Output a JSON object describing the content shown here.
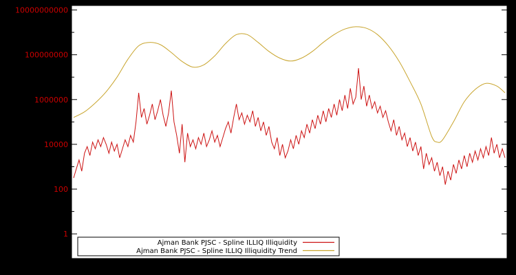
{
  "colors": {
    "background": "#000000",
    "plot_background": "#ffffff",
    "border": "#000000",
    "axis_label": "#cc0000",
    "legend_background": "#ffffff",
    "legend_text": "#000000",
    "series_illiquidity": "#cc1111",
    "series_trend": "#c8a42c"
  },
  "chart_data": {
    "type": "line",
    "yscale": "log",
    "grid": false,
    "legend_position": "bottom-center",
    "ytick_labels": [
      "1",
      "100",
      "10000",
      "1000000",
      "100000000",
      "10000000000"
    ],
    "ytick_log10": [
      0,
      2,
      4,
      6,
      8,
      10
    ],
    "ylog_axis_range": [
      -1.1,
      10.2
    ],
    "ylim": [
      1,
      10000000000
    ],
    "x_domain": [
      0,
      159
    ],
    "series": [
      {
        "name": "Ajman Bank PJSC - Spline ILLIQ Illiquidity",
        "color": "#cc1111",
        "style": "jagged",
        "log10_values": [
          2.5,
          2.9,
          3.3,
          2.8,
          3.6,
          3.9,
          3.5,
          4.1,
          3.8,
          4.2,
          3.9,
          4.3,
          4.0,
          3.6,
          4.1,
          3.7,
          4.0,
          3.4,
          3.8,
          4.2,
          3.9,
          4.4,
          4.1,
          5.0,
          6.3,
          5.2,
          5.6,
          4.9,
          5.3,
          5.8,
          5.1,
          5.5,
          6.0,
          5.3,
          4.8,
          5.4,
          6.4,
          5.0,
          4.4,
          3.6,
          4.9,
          3.2,
          4.5,
          3.9,
          4.2,
          3.8,
          4.3,
          4.0,
          4.5,
          3.9,
          4.2,
          4.6,
          4.1,
          4.4,
          3.9,
          4.3,
          4.7,
          5.0,
          4.5,
          5.2,
          5.8,
          5.1,
          5.4,
          4.9,
          5.3,
          5.0,
          5.5,
          4.8,
          5.2,
          4.6,
          5.0,
          4.4,
          4.8,
          4.1,
          3.8,
          4.3,
          3.5,
          4.0,
          3.4,
          3.7,
          4.2,
          3.8,
          4.4,
          4.0,
          4.6,
          4.3,
          4.9,
          4.5,
          5.1,
          4.7,
          5.3,
          4.9,
          5.5,
          5.0,
          5.6,
          5.2,
          5.8,
          5.3,
          6.0,
          5.5,
          6.2,
          5.6,
          6.5,
          5.8,
          6.1,
          7.4,
          6.0,
          6.6,
          5.7,
          6.2,
          5.6,
          5.9,
          5.4,
          5.7,
          5.2,
          5.5,
          5.0,
          4.6,
          5.1,
          4.4,
          4.8,
          4.2,
          4.5,
          3.9,
          4.3,
          3.7,
          4.1,
          3.5,
          3.9,
          2.9,
          3.6,
          3.1,
          3.4,
          2.8,
          3.2,
          2.6,
          3.0,
          2.2,
          2.8,
          2.4,
          3.1,
          2.7,
          3.3,
          2.9,
          3.5,
          3.0,
          3.6,
          3.2,
          3.7,
          3.3,
          3.8,
          3.4,
          3.9,
          3.5,
          4.3,
          3.6,
          4.0,
          3.4,
          3.8,
          3.4
        ]
      },
      {
        "name": "Ajman Bank PJSC - Spline ILLIQ Illiquidity Trend",
        "color": "#c8a42c",
        "style": "smooth",
        "x": [
          0,
          4,
          8,
          12,
          16,
          20,
          24,
          28,
          32,
          36,
          40,
          44,
          48,
          52,
          56,
          60,
          64,
          68,
          72,
          76,
          80,
          84,
          88,
          92,
          96,
          100,
          104,
          108,
          112,
          116,
          120,
          124,
          128,
          132,
          134,
          136,
          140,
          144,
          148,
          152,
          156,
          159
        ],
        "log10_values": [
          5.2,
          5.45,
          5.85,
          6.35,
          7.0,
          7.8,
          8.4,
          8.55,
          8.45,
          8.1,
          7.7,
          7.45,
          7.55,
          7.95,
          8.5,
          8.9,
          8.9,
          8.55,
          8.15,
          7.85,
          7.72,
          7.85,
          8.15,
          8.55,
          8.9,
          9.15,
          9.25,
          9.18,
          8.9,
          8.4,
          7.7,
          6.8,
          5.8,
          4.35,
          4.1,
          4.2,
          5.0,
          5.9,
          6.45,
          6.72,
          6.6,
          6.3
        ]
      }
    ]
  }
}
